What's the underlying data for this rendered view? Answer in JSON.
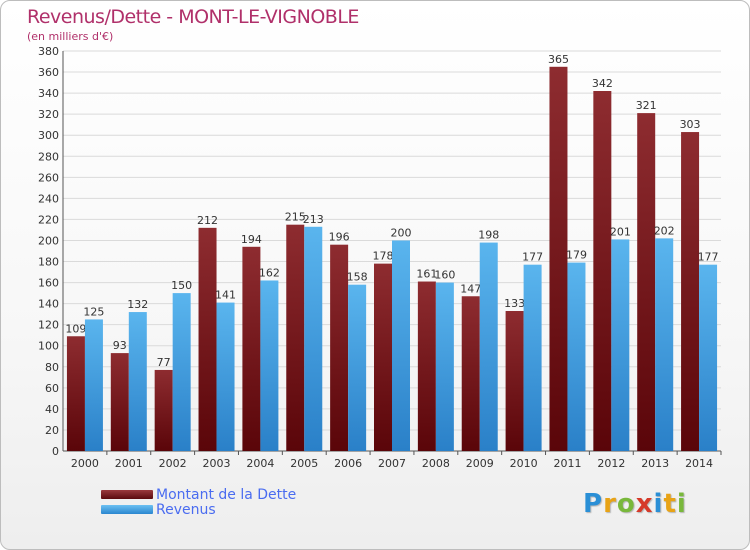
{
  "header": {
    "title": "Revenus/Dette - MONT-LE-VIGNOBLE",
    "subtitle": "(en milliers d'€)"
  },
  "legend": {
    "debt_label": "Montant de la Dette",
    "revenue_label": "Revenus"
  },
  "logo": {
    "text": "Proxiti",
    "letters": [
      "P",
      "r",
      "o",
      "x",
      "i",
      "t",
      "i"
    ],
    "colors": [
      "#2a8fd6",
      "#e8a316",
      "#79b83b",
      "#d63a2a",
      "#2a8fd6",
      "#e8a316",
      "#79b83b"
    ]
  },
  "colors": {
    "debt": "#7a1a1e",
    "revenue": "#3a9ee3",
    "title": "#b0306a",
    "legend_text": "#4a6cf0"
  },
  "chart_data": {
    "type": "bar",
    "title": "Revenus/Dette - MONT-LE-VIGNOBLE",
    "subtitle": "(en milliers d'€)",
    "categories": [
      "2000",
      "2001",
      "2002",
      "2003",
      "2004",
      "2005",
      "2006",
      "2007",
      "2008",
      "2009",
      "2010",
      "2011",
      "2012",
      "2013",
      "2014"
    ],
    "series": [
      {
        "name": "Montant de la Dette",
        "color": "#7a1a1e",
        "values": [
          109,
          93,
          77,
          212,
          194,
          215,
          196,
          178,
          161,
          147,
          133,
          365,
          342,
          321,
          303
        ]
      },
      {
        "name": "Revenus",
        "color": "#3a9ee3",
        "values": [
          125,
          132,
          150,
          141,
          162,
          213,
          158,
          200,
          160,
          198,
          177,
          179,
          201,
          202,
          177
        ]
      }
    ],
    "ylim": [
      0,
      380
    ],
    "yticks": [
      0,
      20,
      40,
      60,
      80,
      100,
      120,
      140,
      160,
      180,
      200,
      220,
      240,
      260,
      280,
      300,
      320,
      340,
      360,
      380
    ],
    "grid": true,
    "legend_position": "bottom-left"
  }
}
